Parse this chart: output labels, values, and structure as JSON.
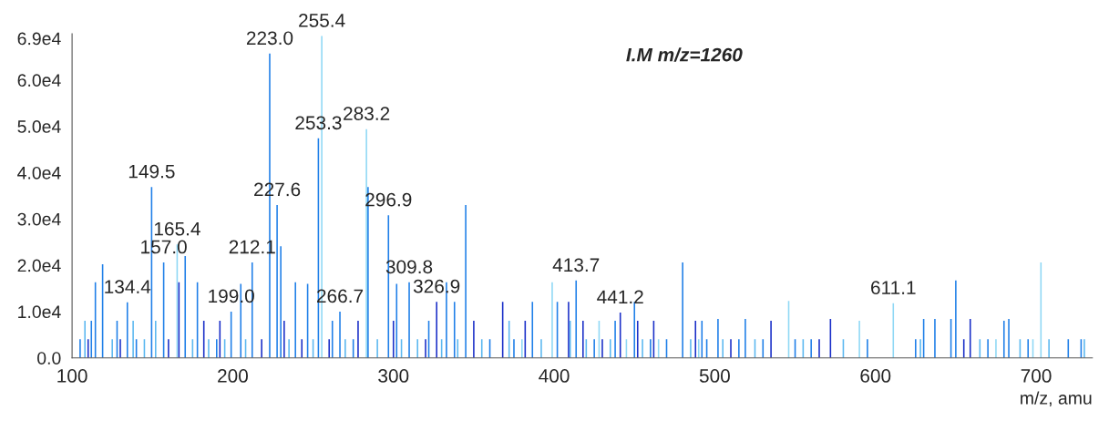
{
  "chart_data": {
    "type": "bar",
    "xlabel": "m/z, amu",
    "x": [
      105,
      108,
      110,
      112,
      114.5,
      119,
      125,
      128,
      130,
      134.4,
      138,
      140,
      145,
      149.5,
      152,
      157.0,
      160,
      165.4,
      166.5,
      170.4,
      175,
      178,
      182,
      185,
      190,
      192,
      195,
      199.0,
      205,
      208,
      212.1,
      218,
      223.0,
      227.6,
      229.9,
      232,
      235,
      239,
      243,
      246.6,
      250,
      253.3,
      255.4,
      260,
      262,
      266.7,
      270,
      275,
      278,
      283.2,
      284.2,
      290,
      296.9,
      300,
      302,
      305,
      309.8,
      315,
      320,
      322,
      326.9,
      330,
      333,
      338,
      340,
      345,
      350,
      355,
      360,
      368,
      372,
      375,
      380,
      382,
      386.5,
      392,
      398.8,
      402,
      409,
      410,
      413.7,
      418,
      420,
      425,
      428,
      430,
      435,
      438,
      441.2,
      445,
      450,
      452,
      455,
      460,
      462,
      465,
      470,
      480,
      485,
      488,
      490,
      492,
      495,
      502,
      505,
      510,
      515,
      519,
      525,
      530,
      535,
      546,
      550,
      555,
      560,
      565,
      572,
      580,
      590,
      595,
      611.1,
      625,
      628,
      630,
      637,
      647,
      650,
      655,
      659,
      665,
      670,
      675,
      680,
      683,
      690,
      695,
      698,
      703,
      708,
      720,
      728,
      730
    ],
    "values": [
      4000,
      8000,
      4000,
      8000,
      16300,
      20200,
      4000,
      8000,
      4000,
      12000,
      8000,
      4000,
      4000,
      36900,
      8000,
      20600,
      4000,
      24500,
      16300,
      22000,
      4000,
      16300,
      8000,
      4000,
      4000,
      8000,
      4000,
      10000,
      16000,
      4000,
      20600,
      4000,
      65700,
      33000,
      24100,
      8000,
      4000,
      16300,
      4000,
      16000,
      4000,
      47400,
      69500,
      4000,
      8000,
      10000,
      4000,
      4000,
      8000,
      49400,
      36900,
      4000,
      30800,
      8000,
      16000,
      4000,
      16300,
      4000,
      4000,
      8000,
      12100,
      4000,
      16300,
      12100,
      4000,
      33000,
      8000,
      4000,
      4000,
      12100,
      8000,
      4000,
      4000,
      8000,
      12100,
      4000,
      16300,
      12100,
      12100,
      8000,
      16700,
      8000,
      4000,
      4000,
      8000,
      4000,
      4000,
      8000,
      9800,
      4000,
      12100,
      8000,
      4000,
      4000,
      8000,
      4000,
      4000,
      20600,
      4000,
      8000,
      4000,
      8000,
      4000,
      8400,
      4000,
      4000,
      4000,
      8400,
      4000,
      4000,
      8000,
      12300,
      4000,
      4000,
      4000,
      4000,
      8400,
      4000,
      8000,
      4000,
      11800,
      4000,
      4000,
      8400,
      8400,
      8400,
      16700,
      4000,
      8400,
      4000,
      4000,
      4000,
      8000,
      8400,
      4000,
      4000,
      4000,
      20600,
      4000,
      4000,
      4000,
      4000
    ],
    "colors": [
      "#1f7fe8",
      "#5cb8f0",
      "#1a2fc8",
      "#1f7fe8",
      "#1f7fe8",
      "#1f7fe8",
      "#5cb8f0",
      "#1f7fe8",
      "#1a2fc8",
      "#1f7fe8",
      "#5cb8f0",
      "#1f7fe8",
      "#5cb8f0",
      "#1f7fe8",
      "#5cb8f0",
      "#1f7fe8",
      "#1a2fc8",
      "#8fd8f5",
      "#1a2fc8",
      "#1f7fe8",
      "#5cb8f0",
      "#1f7fe8",
      "#1a2fc8",
      "#5cb8f0",
      "#1f7fe8",
      "#1a2fc8",
      "#5cb8f0",
      "#1f7fe8",
      "#1f7fe8",
      "#5cb8f0",
      "#1f7fe8",
      "#1a2fc8",
      "#1f7fe8",
      "#1f7fe8",
      "#1f7fe8",
      "#1a2fc8",
      "#5cb8f0",
      "#1f7fe8",
      "#1a2fc8",
      "#1f7fe8",
      "#5cb8f0",
      "#1f7fe8",
      "#8fd8f5",
      "#1a2fc8",
      "#1f7fe8",
      "#1f7fe8",
      "#5cb8f0",
      "#1f7fe8",
      "#1a2fc8",
      "#8fd8f5",
      "#1f7fe8",
      "#5cb8f0",
      "#1f7fe8",
      "#1a2fc8",
      "#1f7fe8",
      "#5cb8f0",
      "#1f7fe8",
      "#5cb8f0",
      "#1a2fc8",
      "#1f7fe8",
      "#1a2fc8",
      "#5cb8f0",
      "#1f7fe8",
      "#1f7fe8",
      "#5cb8f0",
      "#1f7fe8",
      "#1a2fc8",
      "#5cb8f0",
      "#1f7fe8",
      "#1a2fc8",
      "#5cb8f0",
      "#1f7fe8",
      "#8fd8f5",
      "#1a2fc8",
      "#1f7fe8",
      "#5cb8f0",
      "#8fd8f5",
      "#1f7fe8",
      "#1a2fc8",
      "#5cb8f0",
      "#1f7fe8",
      "#1a2fc8",
      "#5cb8f0",
      "#1f7fe8",
      "#8fd8f5",
      "#1a2fc8",
      "#5cb8f0",
      "#1f7fe8",
      "#1a2fc8",
      "#8fd8f5",
      "#1f7fe8",
      "#1a2fc8",
      "#5cb8f0",
      "#1f7fe8",
      "#1a2fc8",
      "#8fd8f5",
      "#1f7fe8",
      "#1f7fe8",
      "#5cb8f0",
      "#1a2fc8",
      "#8fd8f5",
      "#1f7fe8",
      "#1f7fe8",
      "#1f7fe8",
      "#5cb8f0",
      "#1a2fc8",
      "#1f7fe8",
      "#1f7fe8",
      "#5cb8f0",
      "#1f7fe8",
      "#1a2fc8",
      "#8fd8f5",
      "#1f7fe8",
      "#5cb8f0",
      "#1f7fe8",
      "#1a2fc8",
      "#1a2fc8",
      "#5cb8f0",
      "#8fd8f5",
      "#1f7fe8",
      "#8fd8f5",
      "#1f7fe8",
      "#5cb8f0",
      "#1f7fe8",
      "#1f7fe8",
      "#1f7fe8",
      "#1f7fe8",
      "#1a2fc8",
      "#1a2fc8",
      "#5cb8f0",
      "#1f7fe8",
      "#8fd8f5",
      "#1f7fe8",
      "#1f7fe8",
      "#5cb8f0",
      "#1f7fe8",
      "#8fd8f5",
      "#8fd8f5",
      "#5cb8f0",
      "#1f7fe8",
      "#1f7fe8",
      "#5cb8f0"
    ],
    "xlim": [
      100,
      735
    ],
    "ylim": [
      0,
      70000
    ],
    "xticks": [
      100,
      200,
      300,
      400,
      500,
      600,
      700
    ],
    "yticks": [
      {
        "value": 0,
        "label": "0.0"
      },
      {
        "value": 10000,
        "label": "1.0e4"
      },
      {
        "value": 20000,
        "label": "2.0e4"
      },
      {
        "value": 30000,
        "label": "3.0e4"
      },
      {
        "value": 40000,
        "label": "4.0e4"
      },
      {
        "value": 50000,
        "label": "5.0e4"
      },
      {
        "value": 60000,
        "label": "6.0e4"
      },
      {
        "value": 69000,
        "label": "6.9e4"
      }
    ],
    "grid": false,
    "legend": false,
    "annotations": [
      "I.M m/z=1260",
      {
        "text": "134.4",
        "x": 134.4,
        "y": 12000
      },
      {
        "text": "149.5",
        "x": 149.5,
        "y": 36900
      },
      {
        "text": "157.0",
        "x": 157.0,
        "y": 20600
      },
      {
        "text": "165.4",
        "x": 165.4,
        "y": 24500
      },
      {
        "text": "199.0",
        "x": 199.0,
        "y": 10000
      },
      {
        "text": "212.1",
        "x": 212.1,
        "y": 20600
      },
      {
        "text": "223.0",
        "x": 223.0,
        "y": 65700
      },
      {
        "text": "227.6",
        "x": 227.6,
        "y": 33000
      },
      {
        "text": "253.3",
        "x": 253.3,
        "y": 47400
      },
      {
        "text": "255.4",
        "x": 255.4,
        "y": 69500
      },
      {
        "text": "266.7",
        "x": 266.7,
        "y": 10000
      },
      {
        "text": "283.2",
        "x": 283.2,
        "y": 49400
      },
      {
        "text": "296.9",
        "x": 296.9,
        "y": 30800
      },
      {
        "text": "309.8",
        "x": 309.8,
        "y": 16300
      },
      {
        "text": "326.9",
        "x": 326.9,
        "y": 12100
      },
      {
        "text": "413.7",
        "x": 413.7,
        "y": 16700
      },
      {
        "text": "441.2",
        "x": 441.2,
        "y": 9800
      },
      {
        "text": "611.1",
        "x": 611.1,
        "y": 11800
      }
    ]
  }
}
